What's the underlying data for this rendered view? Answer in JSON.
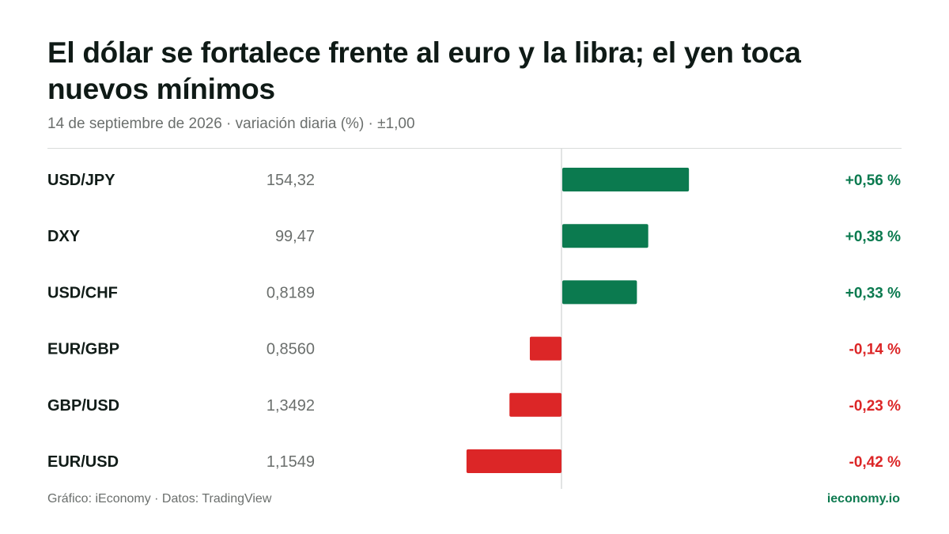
{
  "header": {
    "title": "El dólar se fortalece frente al euro y la libra; el yen toca nuevos mínimos",
    "subtitle": "14 de septiembre de 2026 · variación diaria (%) · ±1,00"
  },
  "footer": {
    "credit": "Gráfico: iEconomy · Datos: TradingView",
    "brand": "ieconomy.io"
  },
  "colors": {
    "positive": "#0b7a4f",
    "negative": "#dc2627",
    "label": "#111c18",
    "muted": "#6b6f6d",
    "axis": "#d9dcdb"
  },
  "chart_data": {
    "type": "bar",
    "orientation": "horizontal",
    "title": "El dólar se fortalece frente al euro y la libra; el yen toca nuevos mínimos",
    "subtitle": "14 de septiembre de 2026 · variación diaria (%) · ±1,00",
    "xlim": [
      -1.0,
      1.0
    ],
    "grid": false,
    "categories": [
      "USD/JPY",
      "DXY",
      "USD/CHF",
      "EUR/GBP",
      "GBP/USD",
      "EUR/USD"
    ],
    "prices": [
      "154,32",
      "99,47",
      "0,8189",
      "0,8560",
      "1,3492",
      "1,1549"
    ],
    "values": [
      0.56,
      0.38,
      0.33,
      -0.14,
      -0.23,
      -0.42
    ],
    "value_labels": [
      "+0,56 %",
      "+0,38 %",
      "+0,33 %",
      "-0,14 %",
      "-0,23 %",
      "-0,42 %"
    ]
  }
}
